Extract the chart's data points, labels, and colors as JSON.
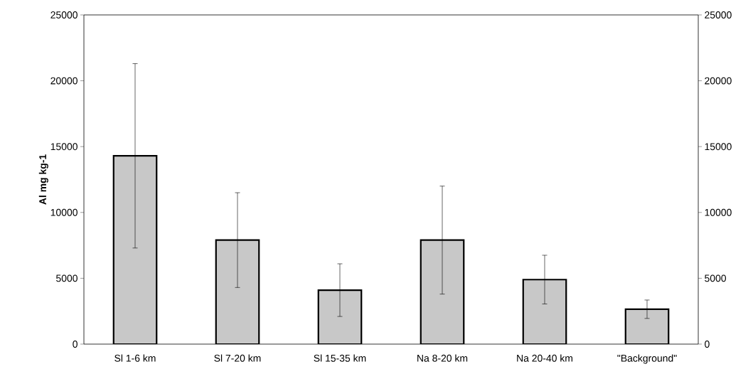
{
  "chart_data": {
    "type": "bar",
    "ylabel": "Al mg kg-1",
    "categories": [
      "Sl 1-6 km",
      "Sl 7-20 km",
      "Sl 15-35 km",
      "Na 8-20 km",
      "Na 20-40 km",
      "\"Background\""
    ],
    "values": [
      14300,
      7900,
      4100,
      7900,
      4900,
      2650
    ],
    "errors": [
      7000,
      3600,
      2000,
      4100,
      1850,
      700
    ],
    "color": "#c8c8c8",
    "ylim": [
      0,
      25000
    ],
    "yticks": [
      0,
      5000,
      10000,
      15000,
      20000,
      25000
    ],
    "y2lim": [
      0,
      25000
    ],
    "y2ticks": [
      0,
      5000,
      10000,
      15000,
      20000,
      25000
    ],
    "grid": false
  }
}
